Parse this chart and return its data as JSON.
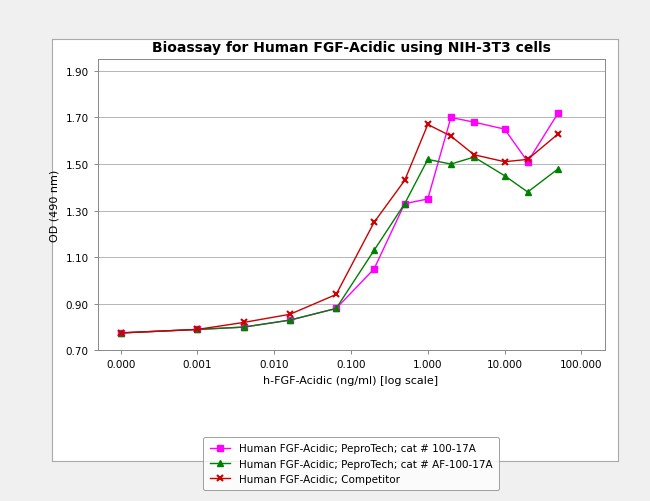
{
  "title": "Bioassay for Human FGF-Acidic using NIH-3T3 cells",
  "xlabel": "h-FGF-Acidic (ng/ml) [log scale]",
  "ylabel": "OD (490 nm)",
  "ylim": [
    0.7,
    1.95
  ],
  "yticks": [
    0.7,
    0.9,
    1.1,
    1.3,
    1.5,
    1.7,
    1.9
  ],
  "series": [
    {
      "label": "Human FGF-Acidic; PeproTech; cat # 100-17A",
      "color": "#ff00ff",
      "marker": "s",
      "x": [
        0.0001,
        0.001,
        0.004,
        0.016,
        0.064,
        0.2,
        0.5,
        1.0,
        2.0,
        4.0,
        10.0,
        20.0,
        50.0
      ],
      "y": [
        0.775,
        0.79,
        0.8,
        0.83,
        0.88,
        1.05,
        1.33,
        1.35,
        1.7,
        1.68,
        1.65,
        1.51,
        1.72
      ]
    },
    {
      "label": "Human FGF-Acidic; PeproTech; cat # AF-100-17A",
      "color": "#008000",
      "marker": "^",
      "x": [
        0.0001,
        0.001,
        0.004,
        0.016,
        0.064,
        0.2,
        0.5,
        1.0,
        2.0,
        4.0,
        10.0,
        20.0,
        50.0
      ],
      "y": [
        0.775,
        0.79,
        0.8,
        0.83,
        0.88,
        1.13,
        1.33,
        1.52,
        1.5,
        1.53,
        1.45,
        1.38,
        1.48
      ]
    },
    {
      "label": "Human FGF-Acidic; Competitor",
      "color": "#cc0000",
      "marker": "x",
      "x": [
        0.0001,
        0.001,
        0.004,
        0.016,
        0.064,
        0.2,
        0.5,
        1.0,
        2.0,
        4.0,
        10.0,
        20.0,
        50.0
      ],
      "y": [
        0.775,
        0.79,
        0.82,
        0.855,
        0.94,
        1.25,
        1.43,
        1.67,
        1.62,
        1.54,
        1.51,
        1.52,
        1.63
      ]
    }
  ],
  "xtick_positions": [
    0.0001,
    0.001,
    0.01,
    0.1,
    1.0,
    10.0,
    100.0
  ],
  "xtick_labels": [
    "0.000",
    "0.001",
    "0.010",
    "0.100",
    "1.000",
    "10.000",
    "100.000"
  ],
  "outer_bg": "#e8e8e8",
  "inner_bg": "#ffffff",
  "grid_color": "#aaaaaa",
  "title_fontsize": 10,
  "axis_label_fontsize": 8,
  "tick_fontsize": 7.5,
  "legend_fontsize": 7.5
}
